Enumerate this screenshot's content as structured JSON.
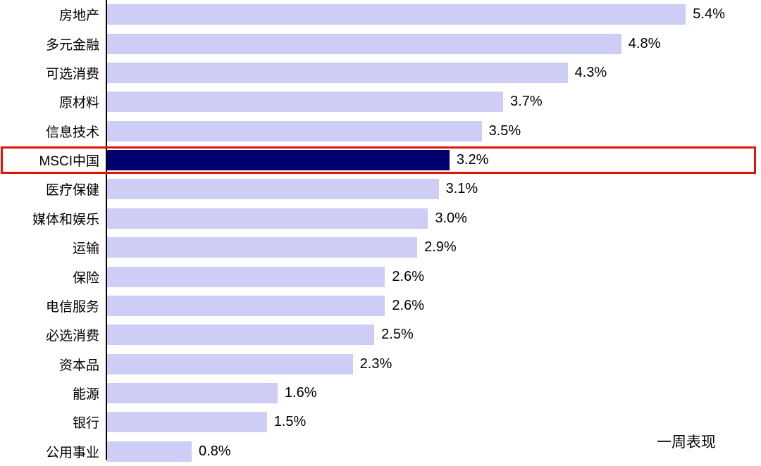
{
  "chart_data": {
    "type": "bar",
    "orientation": "horizontal",
    "title": "",
    "xlabel": "",
    "ylabel": "",
    "categories": [
      "房地产",
      "多元金融",
      "可选消费",
      "原材料",
      "信息技术",
      "MSCI中国",
      "医疗保健",
      "媒体和娱乐",
      "运输",
      "保险",
      "电信服务",
      "必选消费",
      "资本品",
      "能源",
      "银行",
      "公用事业"
    ],
    "values": [
      5.4,
      4.8,
      4.3,
      3.7,
      3.5,
      3.2,
      3.1,
      3.0,
      2.9,
      2.6,
      2.6,
      2.5,
      2.3,
      1.6,
      1.5,
      0.8
    ],
    "value_labels": [
      "5.4%",
      "4.8%",
      "4.3%",
      "3.7%",
      "3.5%",
      "3.2%",
      "3.1%",
      "3.0%",
      "2.9%",
      "2.6%",
      "2.6%",
      "2.5%",
      "2.3%",
      "1.6%",
      "1.5%",
      "0.8%"
    ],
    "highlighted_category": "MSCI中国",
    "highlighted_index": 5,
    "annotation": "一周表现",
    "xlim": [
      0,
      6.1
    ],
    "grid": false,
    "legend": false
  },
  "colors": {
    "bar": "#cdcdf6",
    "highlight_bar": "#00006e",
    "highlight_box": "#e3120b",
    "text": "#000000",
    "axis": "#000000",
    "background": "#ffffff"
  }
}
